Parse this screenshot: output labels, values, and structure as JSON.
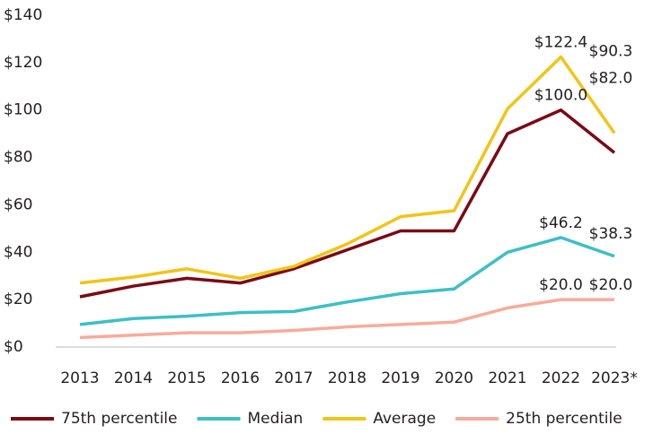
{
  "chart_data": {
    "type": "line",
    "categories": [
      "2013",
      "2014",
      "2015",
      "2016",
      "2017",
      "2018",
      "2019",
      "2020",
      "2021",
      "2022",
      "2023*"
    ],
    "ylim": [
      0,
      140
    ],
    "yticks": [
      {
        "value": 0,
        "label": "$0"
      },
      {
        "value": 20,
        "label": "$20"
      },
      {
        "value": 40,
        "label": "$40"
      },
      {
        "value": 60,
        "label": "$60"
      },
      {
        "value": 80,
        "label": "$80"
      },
      {
        "value": 100,
        "label": "$100"
      },
      {
        "value": 120,
        "label": "$120"
      },
      {
        "value": 140,
        "label": "$140"
      }
    ],
    "series": [
      {
        "name": "75th percentile",
        "color": "#7a0a14",
        "values": [
          21.2,
          25.7,
          29,
          27,
          33,
          41,
          49,
          49,
          90,
          100.0,
          82.0
        ],
        "value_labels": [
          null,
          null,
          null,
          null,
          null,
          null,
          null,
          null,
          null,
          "$100.0",
          "$82.0"
        ]
      },
      {
        "name": "Median",
        "color": "#3dbfc4",
        "values": [
          9.5,
          12,
          13,
          14.5,
          15,
          19,
          22.5,
          24.5,
          40,
          46.2,
          38.3
        ],
        "value_labels": [
          null,
          null,
          null,
          null,
          null,
          null,
          null,
          null,
          null,
          "$46.2",
          "$38.3"
        ]
      },
      {
        "name": "Average",
        "color": "#f2c417",
        "values": [
          27,
          29.5,
          33,
          29,
          34,
          43.5,
          55,
          57.5,
          100.5,
          122.4,
          90.3
        ],
        "value_labels": [
          null,
          null,
          null,
          null,
          null,
          null,
          null,
          null,
          null,
          "$122.4",
          "$90.3"
        ]
      },
      {
        "name": "25th percentile",
        "color": "#f7ab9c",
        "values": [
          4,
          5,
          6,
          6,
          7,
          8.5,
          9.5,
          10.5,
          16.5,
          20.0,
          20.0
        ],
        "value_labels": [
          null,
          null,
          null,
          null,
          null,
          null,
          null,
          null,
          null,
          "$20.0",
          "$20.0"
        ]
      }
    ]
  }
}
